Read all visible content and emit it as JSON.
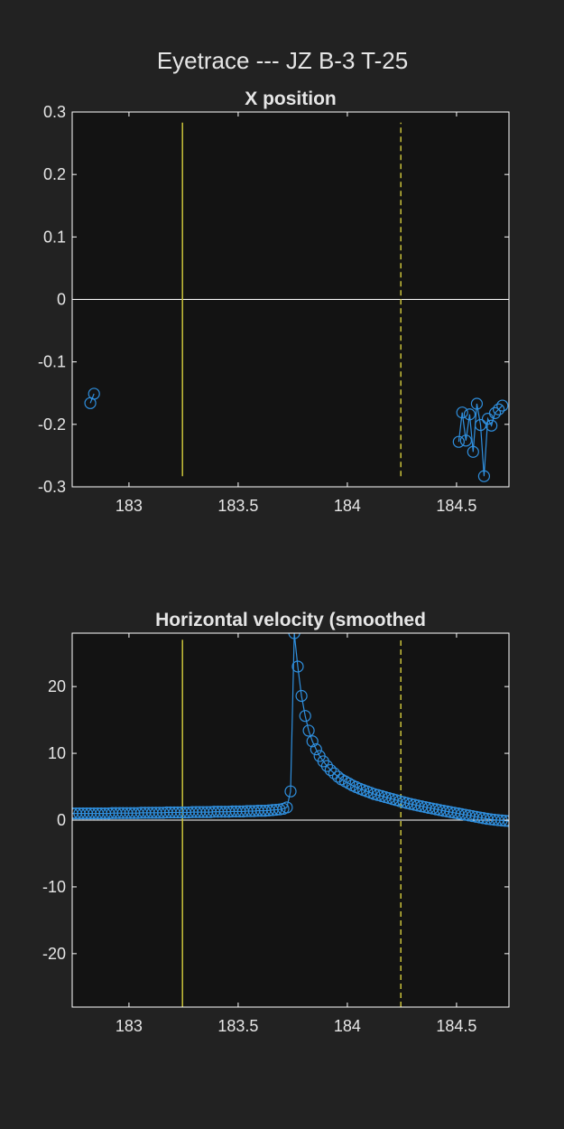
{
  "figure": {
    "title": "Eyetrace --- JZ B-3 T-25",
    "colors": {
      "background": "#222222",
      "axes_background": "#131313",
      "axes_frame": "#ffffff",
      "text": "#e6e6e6",
      "series": "#2f8fde",
      "event_marker": "#c9c23a",
      "zero_line": "#ffffff"
    }
  },
  "chart_data": [
    {
      "type": "line",
      "title": "X position",
      "xlabel": "",
      "ylabel": "",
      "xlim": [
        182.74,
        184.74
      ],
      "ylim": [
        -0.3,
        0.3
      ],
      "xticks": [
        183,
        183.5,
        184,
        184.5
      ],
      "xtick_labels": [
        "183",
        "183.5",
        "184",
        "184.5"
      ],
      "yticks": [
        0.3,
        0.2,
        0.1,
        0,
        -0.1,
        -0.2,
        -0.3
      ],
      "ytick_labels": [
        "0.3",
        "0.2",
        "0.1",
        "0",
        "-0.1",
        "-0.2",
        "-0.3"
      ],
      "markers": "open-circle",
      "reference_lines": {
        "zero": 0,
        "solid_event_x": 183.245,
        "dashed_event_x": 184.245,
        "event_ylim": [
          -0.283,
          0.283
        ]
      },
      "series": [
        {
          "x": [
            182.823,
            182.84
          ],
          "y": [
            -0.166,
            -0.151
          ]
        },
        {
          "x": [
            184.51,
            184.526,
            184.543,
            184.56,
            184.576,
            184.593,
            184.61,
            184.626,
            184.643,
            184.66,
            184.676,
            184.693,
            184.71
          ],
          "y": [
            -0.228,
            -0.181,
            -0.226,
            -0.184,
            -0.244,
            -0.167,
            -0.201,
            -0.283,
            -0.191,
            -0.202,
            -0.182,
            -0.176,
            -0.17
          ]
        }
      ]
    },
    {
      "type": "line",
      "title": "Horizontal velocity (smoothed",
      "xlabel": "",
      "ylabel": "",
      "xlim": [
        182.74,
        184.74
      ],
      "ylim": [
        -28,
        28
      ],
      "xticks": [
        183,
        183.5,
        184,
        184.5
      ],
      "xtick_labels": [
        "183",
        "183.5",
        "184",
        "184.5"
      ],
      "yticks": [
        20,
        10,
        0,
        -10,
        -20
      ],
      "ytick_labels": [
        "20",
        "10",
        "0",
        "-10",
        "-20"
      ],
      "markers": "open-circle",
      "reference_lines": {
        "zero": 0,
        "solid_event_x": 183.245,
        "dashed_event_x": 184.245,
        "event_ylim": [
          -28,
          27
        ]
      },
      "series": [
        {
          "x": [
            182.74,
            182.757,
            182.773,
            182.79,
            182.807,
            182.823,
            182.84,
            182.857,
            182.873,
            182.89,
            182.907,
            182.923,
            182.94,
            182.957,
            182.973,
            182.99,
            183.007,
            183.023,
            183.04,
            183.057,
            183.073,
            183.09,
            183.107,
            183.123,
            183.14,
            183.157,
            183.173,
            183.19,
            183.207,
            183.223,
            183.24,
            183.257,
            183.273,
            183.29,
            183.307,
            183.323,
            183.34,
            183.357,
            183.373,
            183.39,
            183.407,
            183.423,
            183.44,
            183.457,
            183.473,
            183.49,
            183.507,
            183.523,
            183.54,
            183.557,
            183.573,
            183.59,
            183.607,
            183.623,
            183.64,
            183.657,
            183.673,
            183.69,
            183.707,
            183.723,
            183.74,
            183.757,
            183.773,
            183.79,
            183.807,
            183.823,
            183.84,
            183.857,
            183.873,
            183.89,
            183.907,
            183.923,
            183.94,
            183.957,
            183.973,
            183.99,
            184.007,
            184.023,
            184.04,
            184.057,
            184.073,
            184.09,
            184.107,
            184.123,
            184.14,
            184.157,
            184.173,
            184.19,
            184.207,
            184.223,
            184.24,
            184.257,
            184.273,
            184.29,
            184.307,
            184.323,
            184.34,
            184.357,
            184.373,
            184.39,
            184.407,
            184.423,
            184.44,
            184.457,
            184.473,
            184.49,
            184.507,
            184.523,
            184.54,
            184.557,
            184.573,
            184.59,
            184.607,
            184.623,
            184.64,
            184.657,
            184.673,
            184.69,
            184.707,
            184.723,
            184.74
          ],
          "y": [
            1.0,
            1.0,
            1.0,
            1.0,
            1.0,
            1.0,
            1.0,
            1.0,
            1.0,
            1.0,
            1.0,
            1.05,
            1.05,
            1.05,
            1.05,
            1.05,
            1.05,
            1.05,
            1.05,
            1.1,
            1.1,
            1.1,
            1.1,
            1.1,
            1.1,
            1.1,
            1.15,
            1.15,
            1.15,
            1.15,
            1.15,
            1.15,
            1.15,
            1.2,
            1.2,
            1.2,
            1.2,
            1.2,
            1.2,
            1.25,
            1.25,
            1.25,
            1.25,
            1.25,
            1.3,
            1.3,
            1.3,
            1.3,
            1.35,
            1.35,
            1.35,
            1.4,
            1.4,
            1.4,
            1.45,
            1.5,
            1.55,
            1.6,
            1.7,
            1.9,
            4.3,
            28.0,
            23.0,
            18.6,
            15.6,
            13.4,
            11.8,
            10.6,
            9.6,
            8.8,
            8.1,
            7.5,
            7.0,
            6.5,
            6.1,
            5.8,
            5.5,
            5.2,
            4.95,
            4.7,
            4.5,
            4.3,
            4.1,
            3.9,
            3.75,
            3.6,
            3.45,
            3.3,
            3.15,
            3.0,
            2.85,
            2.7,
            2.55,
            2.42,
            2.3,
            2.18,
            2.06,
            1.95,
            1.84,
            1.73,
            1.62,
            1.51,
            1.4,
            1.3,
            1.2,
            1.1,
            1.0,
            0.9,
            0.8,
            0.7,
            0.6,
            0.5,
            0.4,
            0.3,
            0.2,
            0.12,
            0.05,
            0.0,
            -0.05,
            -0.1,
            -0.15
          ]
        }
      ]
    }
  ]
}
